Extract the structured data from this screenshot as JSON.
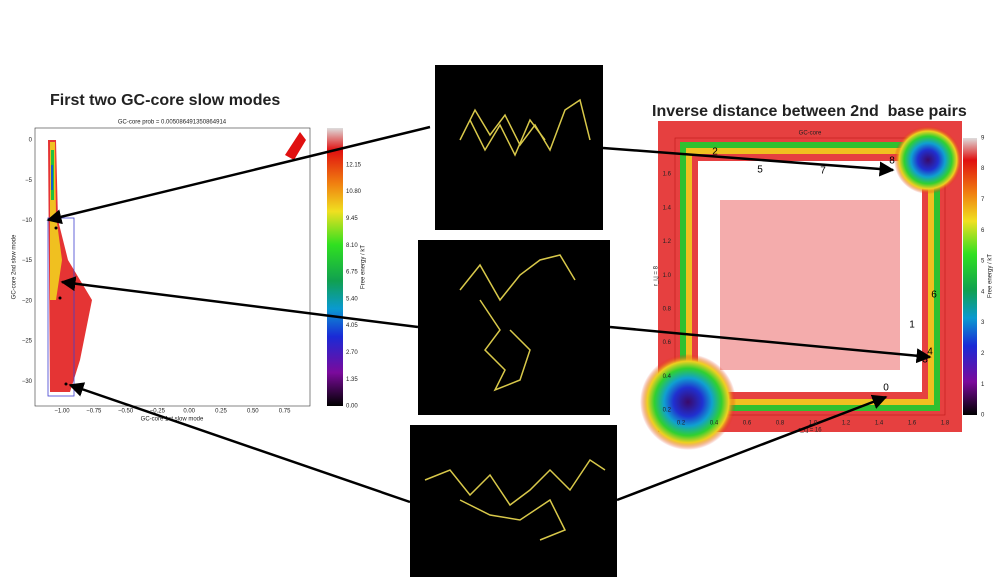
{
  "headings": {
    "left": "First two GC-core slow modes",
    "right": "Inverse distance between 2nd  base pairs"
  },
  "left_plot": {
    "title": "GC-core prob = 0.005086491350864914",
    "xlabel": "GC-core 1st slow mode",
    "ylabel": "GC-core 2nd slow mode",
    "xticks": [
      "−1.00",
      "−0.75",
      "−0.50",
      "−0.25",
      "0.00",
      "0.25",
      "0.50",
      "0.75"
    ],
    "yticks": [
      "0",
      "−5",
      "−10",
      "−15",
      "−20",
      "−25",
      "−30"
    ],
    "colorbar": {
      "label": "Free energy / kT",
      "ticks": [
        "0.00",
        "1.35",
        "2.70",
        "4.05",
        "5.40",
        "6.75",
        "8.10",
        "9.45",
        "10.80",
        "12.15"
      ]
    }
  },
  "right_plot": {
    "title": "GC-core",
    "xlabel": "r_i,j = 16",
    "ylabel": "r_i,j = 8",
    "xticks": [
      "0.2",
      "0.4",
      "0.6",
      "0.8",
      "1.0",
      "1.2",
      "1.4",
      "1.6",
      "1.8"
    ],
    "yticks": [
      "0.2",
      "0.4",
      "0.6",
      "0.8",
      "1.0",
      "1.2",
      "1.4",
      "1.6"
    ],
    "colorbar": {
      "label": "Free energy / kT",
      "ticks": [
        "0",
        "1",
        "2",
        "3",
        "4",
        "5",
        "6",
        "7",
        "8",
        "9"
      ]
    },
    "point_labels": [
      "0",
      "1",
      "2",
      "3",
      "4",
      "5",
      "6",
      "7",
      "8"
    ]
  }
}
